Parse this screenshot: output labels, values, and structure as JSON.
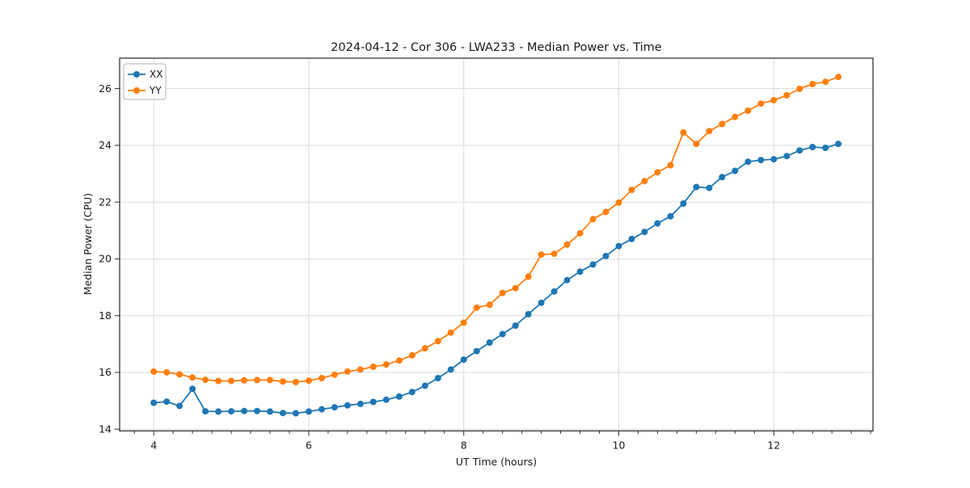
{
  "figure": {
    "title": "2024-04-12 - Cor 306 - LWA233 - Median Power vs. Time",
    "xlabel": "UT Time (hours)",
    "ylabel": "Median Power (CPU)"
  },
  "legend": {
    "position": "upper left",
    "items": [
      {
        "label": "XX",
        "color": "#1f77b4"
      },
      {
        "label": "YY",
        "color": "#ff7f0e"
      }
    ]
  },
  "colors": {
    "series_xx": "#1f77b4",
    "series_yy": "#ff7f0e",
    "grid": "#dcdcdc",
    "spine": "#262626",
    "background": "#ffffff"
  },
  "chart_data": {
    "type": "line",
    "title": "2024-04-12 - Cor 306 - LWA233 - Median Power vs. Time",
    "xlabel": "UT Time (hours)",
    "ylabel": "Median Power (CPU)",
    "xlim": [
      3.56,
      13.28
    ],
    "ylim": [
      13.94,
      27.07
    ],
    "xticks": [
      4,
      6,
      8,
      10,
      12
    ],
    "yticks": [
      14,
      16,
      18,
      20,
      22,
      24,
      26
    ],
    "x_minor_tick_step": 0.25,
    "grid": true,
    "legend_position": "upper left",
    "marker": "o",
    "x": [
      4.0,
      4.167,
      4.333,
      4.5,
      4.667,
      4.833,
      5.0,
      5.167,
      5.333,
      5.5,
      5.667,
      5.833,
      6.0,
      6.167,
      6.333,
      6.5,
      6.667,
      6.833,
      7.0,
      7.167,
      7.333,
      7.5,
      7.667,
      7.833,
      8.0,
      8.167,
      8.333,
      8.5,
      8.667,
      8.833,
      9.0,
      9.167,
      9.333,
      9.5,
      9.667,
      9.833,
      10.0,
      10.167,
      10.333,
      10.5,
      10.667,
      10.833,
      11.0,
      11.167,
      11.333,
      11.5,
      11.667,
      11.833,
      12.0,
      12.167,
      12.333,
      12.5,
      12.667,
      12.833
    ],
    "series": [
      {
        "name": "XX",
        "color": "#1f77b4",
        "values": [
          14.93,
          14.97,
          14.82,
          15.42,
          14.63,
          14.62,
          14.63,
          14.64,
          14.64,
          14.62,
          14.57,
          14.56,
          14.62,
          14.7,
          14.77,
          14.84,
          14.89,
          14.96,
          15.04,
          15.15,
          15.31,
          15.53,
          15.8,
          16.1,
          16.45,
          16.75,
          17.05,
          17.35,
          17.65,
          18.05,
          18.45,
          18.85,
          19.25,
          19.55,
          19.8,
          20.1,
          20.45,
          20.7,
          20.95,
          21.25,
          21.5,
          21.95,
          22.53,
          22.5,
          22.88,
          23.1,
          23.42,
          23.48,
          23.51,
          23.62,
          23.82,
          23.94,
          23.91,
          24.05
        ]
      },
      {
        "name": "YY",
        "color": "#ff7f0e",
        "values": [
          16.03,
          16.0,
          15.93,
          15.82,
          15.74,
          15.7,
          15.7,
          15.72,
          15.73,
          15.73,
          15.68,
          15.66,
          15.71,
          15.8,
          15.92,
          16.03,
          16.1,
          16.2,
          16.28,
          16.42,
          16.6,
          16.85,
          17.1,
          17.4,
          17.75,
          18.28,
          18.38,
          18.8,
          18.97,
          19.37,
          20.15,
          20.18,
          20.5,
          20.9,
          21.4,
          21.65,
          21.98,
          22.43,
          22.74,
          23.05,
          23.3,
          24.45,
          24.05,
          24.5,
          24.75,
          25.0,
          25.22,
          25.47,
          25.59,
          25.76,
          25.99,
          26.16,
          26.24,
          26.41
        ]
      }
    ]
  }
}
